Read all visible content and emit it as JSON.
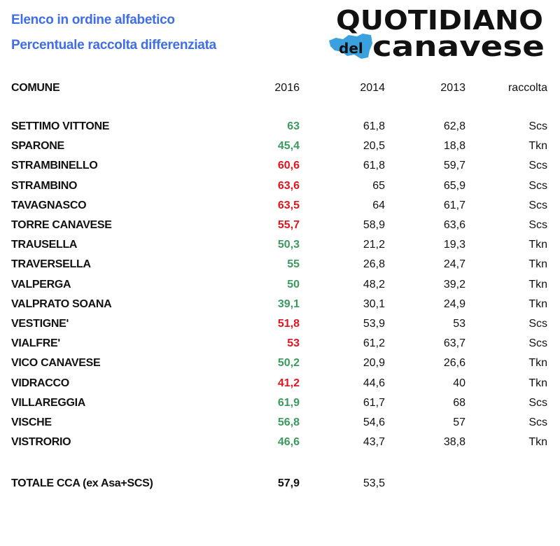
{
  "header": {
    "title_line1": "Elenco in ordine alfabetico",
    "title_line2": "Percentuale raccolta differenziata",
    "logo_text": "QUOTIDIANO del CANAVESE",
    "logo_colors": {
      "text": "#111111",
      "map": "#3aa0de"
    }
  },
  "colors": {
    "title": "#3f6ee6",
    "increase": "#3b9a5e",
    "decrease": "#e0161e"
  },
  "chart_data": {
    "type": "table",
    "columns": [
      "COMUNE",
      "2016",
      "2014",
      "2013",
      "raccolta"
    ],
    "rows": [
      {
        "comune": "SETTIMO VITTONE",
        "v2016": "63",
        "v2014": "61,8",
        "v2013": "62,8",
        "raccolta": "Scs",
        "trend": "increase"
      },
      {
        "comune": "SPARONE",
        "v2016": "45,4",
        "v2014": "20,5",
        "v2013": "18,8",
        "raccolta": "Tkn",
        "trend": "increase"
      },
      {
        "comune": "STRAMBINELLO",
        "v2016": "60,6",
        "v2014": "61,8",
        "v2013": "59,7",
        "raccolta": "Scs",
        "trend": "decrease"
      },
      {
        "comune": "STRAMBINO",
        "v2016": "63,6",
        "v2014": "65",
        "v2013": "65,9",
        "raccolta": "Scs",
        "trend": "decrease"
      },
      {
        "comune": "TAVAGNASCO",
        "v2016": "63,5",
        "v2014": "64",
        "v2013": "61,7",
        "raccolta": "Scs",
        "trend": "decrease"
      },
      {
        "comune": "TORRE CANAVESE",
        "v2016": "55,7",
        "v2014": "58,9",
        "v2013": "63,6",
        "raccolta": "Scs",
        "trend": "decrease"
      },
      {
        "comune": "TRAUSELLA",
        "v2016": "50,3",
        "v2014": "21,2",
        "v2013": "19,3",
        "raccolta": "Tkn",
        "trend": "increase"
      },
      {
        "comune": "TRAVERSELLA",
        "v2016": "55",
        "v2014": "26,8",
        "v2013": "24,7",
        "raccolta": "Tkn",
        "trend": "increase"
      },
      {
        "comune": "VALPERGA",
        "v2016": "50",
        "v2014": "48,2",
        "v2013": "39,2",
        "raccolta": "Tkn",
        "trend": "increase"
      },
      {
        "comune": "VALPRATO SOANA",
        "v2016": "39,1",
        "v2014": "30,1",
        "v2013": "24,9",
        "raccolta": "Tkn",
        "trend": "increase"
      },
      {
        "comune": "VESTIGNE'",
        "v2016": "51,8",
        "v2014": "53,9",
        "v2013": "53",
        "raccolta": "Scs",
        "trend": "decrease"
      },
      {
        "comune": "VIALFRE'",
        "v2016": "53",
        "v2014": "61,2",
        "v2013": "63,7",
        "raccolta": "Scs",
        "trend": "decrease"
      },
      {
        "comune": "VICO CANAVESE",
        "v2016": "50,2",
        "v2014": "20,9",
        "v2013": "26,6",
        "raccolta": "Tkn",
        "trend": "increase"
      },
      {
        "comune": "VIDRACCO",
        "v2016": "41,2",
        "v2014": "44,6",
        "v2013": "40",
        "raccolta": "Tkn",
        "trend": "decrease"
      },
      {
        "comune": "VILLAREGGIA",
        "v2016": "61,9",
        "v2014": "61,7",
        "v2013": "68",
        "raccolta": "Scs",
        "trend": "increase"
      },
      {
        "comune": "VISCHE",
        "v2016": "56,8",
        "v2014": "54,6",
        "v2013": "57",
        "raccolta": "Scs",
        "trend": "increase"
      },
      {
        "comune": "VISTRORIO",
        "v2016": "46,6",
        "v2014": "43,7",
        "v2013": "38,8",
        "raccolta": "Tkn",
        "trend": "increase"
      }
    ],
    "total": {
      "comune": "TOTALE CCA (ex Asa+SCS)",
      "v2016": "57,9",
      "v2014": "53,5"
    }
  }
}
